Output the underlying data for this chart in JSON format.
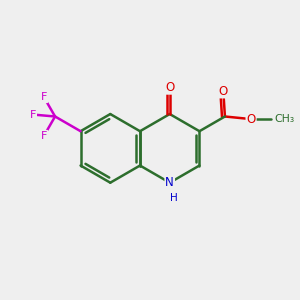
{
  "background_color": "#efefef",
  "bond_color": "#2d6e2d",
  "bond_width": 1.8,
  "atom_colors": {
    "O": "#dd0000",
    "N": "#0000cc",
    "F": "#cc00cc",
    "C": "#2d6e2d"
  }
}
